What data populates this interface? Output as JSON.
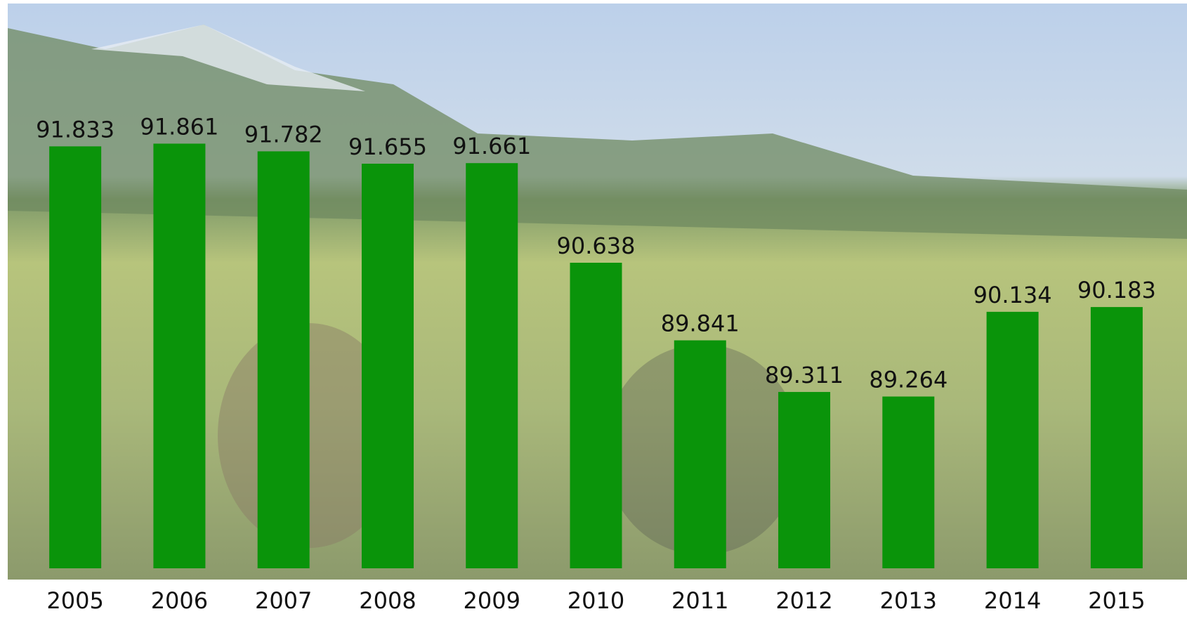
{
  "chart_data": {
    "type": "bar",
    "categories": [
      "2005",
      "2006",
      "2007",
      "2008",
      "2009",
      "2010",
      "2011",
      "2012",
      "2013",
      "2014",
      "2015"
    ],
    "values": [
      91.833,
      91.861,
      91.782,
      91.655,
      91.661,
      90.638,
      89.841,
      89.311,
      89.264,
      90.134,
      90.183
    ],
    "color": "#0a940a",
    "ylim": [
      87.5,
      93.3
    ]
  }
}
